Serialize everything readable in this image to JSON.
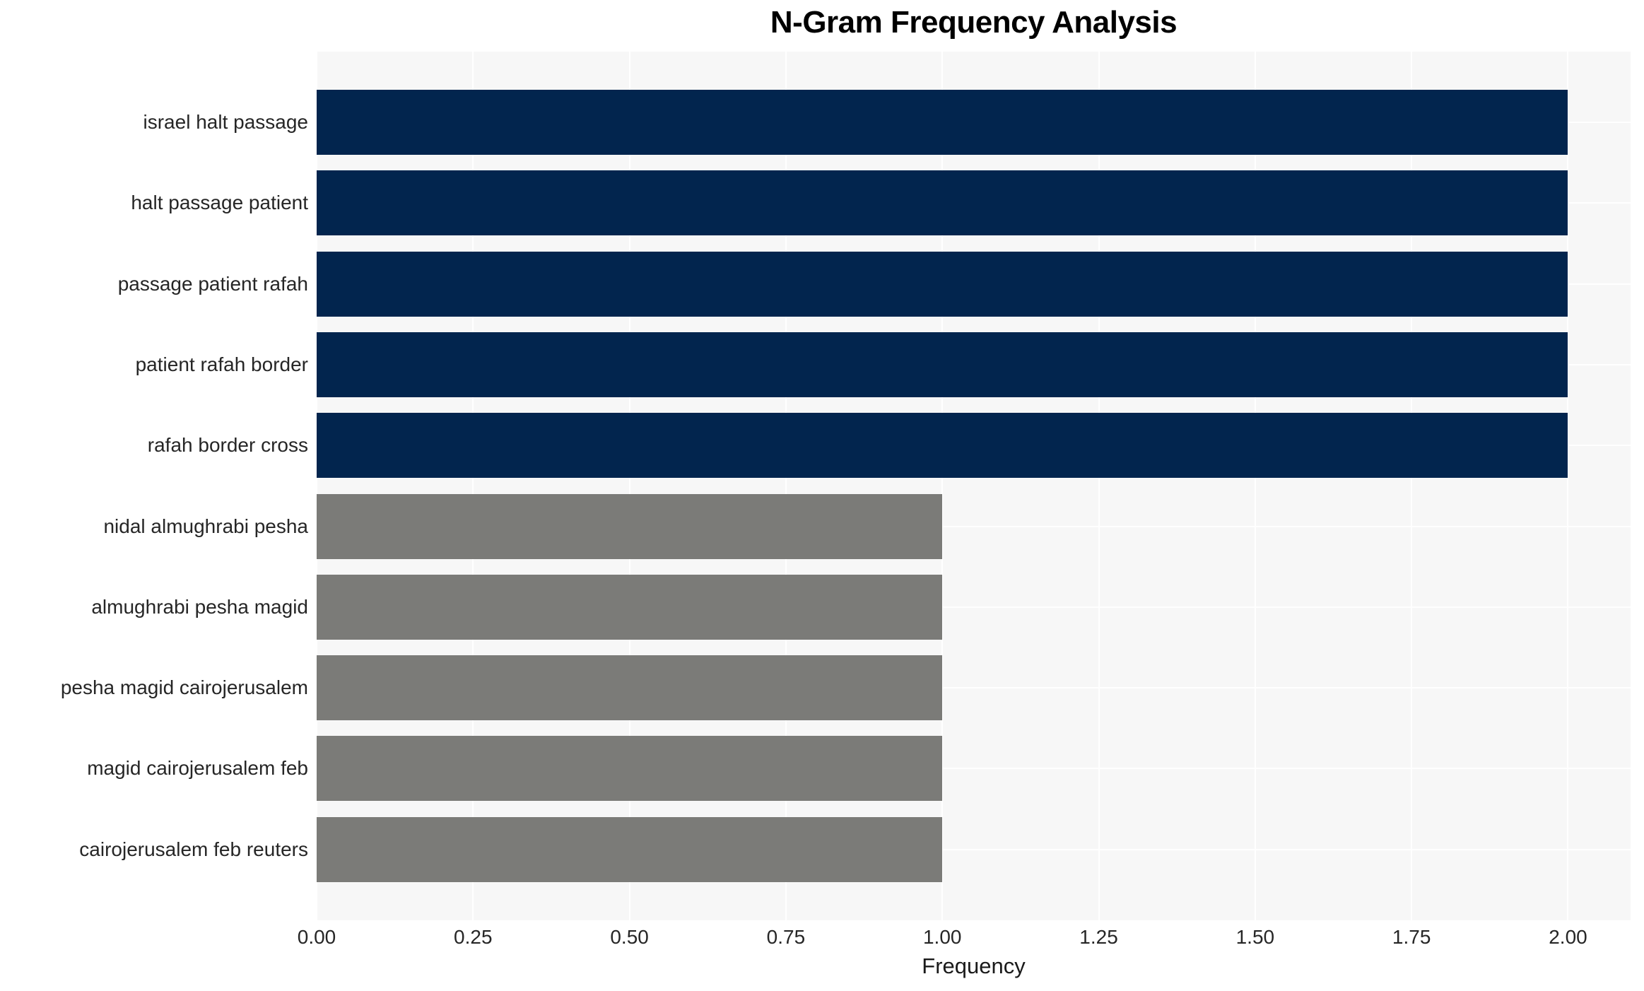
{
  "chart_data": {
    "type": "bar",
    "orientation": "horizontal",
    "title": "N-Gram Frequency Analysis",
    "xlabel": "Frequency",
    "ylabel": "",
    "legend": "none",
    "grid": "major white gridlines on light panel, drawn beneath bars",
    "categories": [
      "israel halt passage",
      "halt passage patient",
      "passage patient rafah",
      "patient rafah border",
      "rafah border cross",
      "nidal almughrabi pesha",
      "almughrabi pesha magid",
      "pesha magid cairojerusalem",
      "magid cairojerusalem feb",
      "cairojerusalem feb reuters"
    ],
    "values": [
      2.0,
      2.0,
      2.0,
      2.0,
      2.0,
      1.0,
      1.0,
      1.0,
      1.0,
      1.0
    ],
    "bar_colors": [
      "#02254e",
      "#02254e",
      "#02254e",
      "#02254e",
      "#02254e",
      "#7b7b78",
      "#7b7b78",
      "#7b7b78",
      "#7b7b78",
      "#7b7b78"
    ],
    "x_tick_values": [
      0.0,
      0.25,
      0.5,
      0.75,
      1.0,
      1.25,
      1.5,
      1.75,
      2.0
    ],
    "x_tick_labels": [
      "0.00",
      "0.25",
      "0.50",
      "0.75",
      "1.00",
      "1.25",
      "1.50",
      "1.75",
      "2.00"
    ],
    "xlim": [
      0,
      2.1
    ],
    "colors": {
      "bar_high": "#02254e",
      "bar_low": "#7b7b78",
      "panel_bg": "#f7f7f7",
      "grid": "#ffffff",
      "tick_text": "#262626",
      "axis_label_text": "#1a1a1a",
      "title_text": "#000000"
    }
  }
}
